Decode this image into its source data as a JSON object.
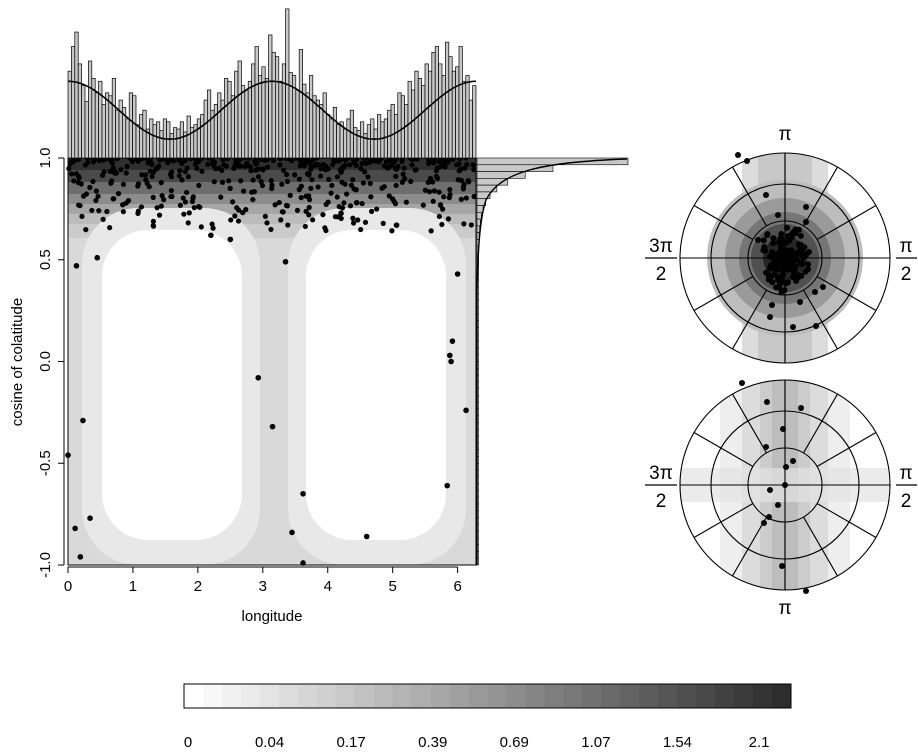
{
  "colors": {
    "ink": "#000000",
    "background": "#ffffff",
    "bar_fill": "#c8c8c8"
  },
  "chart_data": [
    {
      "type": "scatter",
      "xlabel": "longitude",
      "ylabel": "cosine of colatitude",
      "xlim": [
        0,
        6.2832
      ],
      "ylim": [
        -1,
        1
      ],
      "x_ticks": [
        "0",
        "1",
        "2",
        "3",
        "4",
        "5",
        "6"
      ],
      "y_ticks": [
        "-1.0",
        "-0.5",
        "0.0",
        "0.5",
        "1.0"
      ],
      "background": "filled density contours (darker = higher density), density peaks at cos(colatitude) = 1",
      "points": [
        [
          0.0,
          -0.46
        ],
        [
          0.11,
          -0.82
        ],
        [
          0.13,
          0.47
        ],
        [
          0.19,
          -0.96
        ],
        [
          0.23,
          -0.29
        ],
        [
          0.34,
          -0.77
        ],
        [
          0.45,
          0.51
        ],
        [
          2.2,
          0.62
        ],
        [
          2.5,
          0.6
        ],
        [
          2.93,
          -0.08
        ],
        [
          3.15,
          -0.32
        ],
        [
          3.35,
          0.49
        ],
        [
          3.45,
          -0.84
        ],
        [
          3.62,
          -0.65
        ],
        [
          3.62,
          -0.99
        ],
        [
          4.6,
          -0.86
        ],
        [
          5.06,
          0.67
        ],
        [
          5.84,
          -0.61
        ],
        [
          5.88,
          0.03
        ],
        [
          5.92,
          0.1
        ],
        [
          5.9,
          0.0
        ],
        [
          6.0,
          0.43
        ],
        [
          6.13,
          -0.24
        ]
      ],
      "top_histogram": {
        "variable": "longitude",
        "bins": 120,
        "heights": [
          1.45,
          1.62,
          1.72,
          1.5,
          1.35,
          1.24,
          1.52,
          1.4,
          1.3,
          1.38,
          1.22,
          1.3,
          1.28,
          1.4,
          1.18,
          1.25,
          1.2,
          1.12,
          1.3,
          1.28,
          1.08,
          1.15,
          1.18,
          1.05,
          1.12,
          1.08,
          1.1,
          1.04,
          1.12,
          1.1,
          1.02,
          1.06,
          1.05,
          1.1,
          1.03,
          1.14,
          1.06,
          1.08,
          1.12,
          1.15,
          1.25,
          1.32,
          1.18,
          1.22,
          1.3,
          1.25,
          1.4,
          1.38,
          1.28,
          1.45,
          1.52,
          1.35,
          1.32,
          1.38,
          1.5,
          1.62,
          1.42,
          1.48,
          1.4,
          1.7,
          1.58,
          1.55,
          1.38,
          1.5,
          1.88,
          1.44,
          1.42,
          1.32,
          1.6,
          1.36,
          1.3,
          1.42,
          1.28,
          1.25,
          1.22,
          1.3,
          1.15,
          1.12,
          1.2,
          1.08,
          1.1,
          1.05,
          1.12,
          1.18,
          1.06,
          1.04,
          1.1,
          1.02,
          1.08,
          1.12,
          1.05,
          1.15,
          1.1,
          1.12,
          1.18,
          1.22,
          1.15,
          1.3,
          1.28,
          1.22,
          1.38,
          1.32,
          1.45,
          1.4,
          1.35,
          1.5,
          1.45,
          1.58,
          1.62,
          1.5,
          1.42,
          1.65,
          1.55,
          1.45,
          1.48,
          1.62,
          1.38,
          1.42,
          1.25,
          1.35
        ],
        "curve": "smooth density curve, peaks near 0, pi and 2pi"
      },
      "right_histogram": {
        "variable": "cosine of colatitude",
        "shape": "very tall spike at 1.0 decaying sharply toward 0"
      }
    },
    {
      "type": "scatter",
      "subtype": "polar projection (upper hemisphere)",
      "labels": {
        "top": "π",
        "left_num": "3π",
        "left_den": "2",
        "right_num": "π",
        "right_den": "2"
      }
    },
    {
      "type": "scatter",
      "subtype": "polar projection (lower hemisphere)",
      "labels": {
        "bottom": "π",
        "left_num": "3π",
        "left_den": "2",
        "right_num": "π",
        "right_den": "2"
      }
    },
    {
      "type": "heatmap",
      "subtype": "color key",
      "tick_labels": [
        "0",
        "0.04",
        "0.17",
        "0.39",
        "0.69",
        "1.07",
        "1.54",
        "2.1"
      ],
      "levels": 32
    }
  ]
}
